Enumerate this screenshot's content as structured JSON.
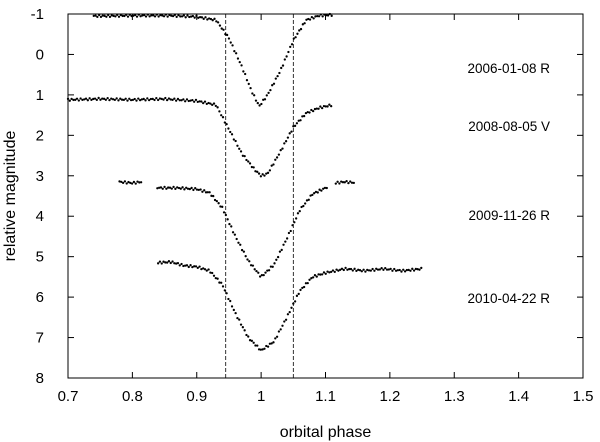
{
  "chart_data": {
    "type": "scatter",
    "xlabel": "orbital phase",
    "ylabel": "relative magnitude",
    "xlim": [
      0.7,
      1.5
    ],
    "ylim": [
      -1,
      8
    ],
    "y_inverted": true,
    "xticks": [
      "0.7",
      "0.8",
      "0.9",
      "1",
      "1.1",
      "1.2",
      "1.3",
      "1.4",
      "1.5"
    ],
    "yticks": [
      "-1",
      "0",
      "1",
      "2",
      "3",
      "4",
      "5",
      "6",
      "7",
      "8"
    ],
    "vlines": [
      0.945,
      1.05
    ],
    "vline_style": "dashed",
    "marker_color": "#000000",
    "series": [
      {
        "name": "2006-01-08  R",
        "baseline": -1.0,
        "points": [
          [
            0.74,
            -0.95
          ],
          [
            0.76,
            -0.95
          ],
          [
            0.79,
            -0.96
          ],
          [
            0.82,
            -0.96
          ],
          [
            0.86,
            -0.96
          ],
          [
            0.9,
            -0.93
          ],
          [
            0.93,
            -0.85
          ],
          [
            0.95,
            -0.4
          ],
          [
            0.97,
            0.3
          ],
          [
            0.985,
            0.9
          ],
          [
            0.997,
            1.28
          ],
          [
            1.01,
            1.0
          ],
          [
            1.03,
            0.4
          ],
          [
            1.05,
            -0.35
          ],
          [
            1.07,
            -0.85
          ],
          [
            1.09,
            -0.96
          ],
          [
            1.11,
            -0.98
          ]
        ]
      },
      {
        "name": "2008-08-05  V",
        "baseline": 1.1,
        "points": [
          [
            0.7,
            1.12
          ],
          [
            0.75,
            1.1
          ],
          [
            0.8,
            1.12
          ],
          [
            0.85,
            1.1
          ],
          [
            0.9,
            1.15
          ],
          [
            0.93,
            1.25
          ],
          [
            0.95,
            1.85
          ],
          [
            0.97,
            2.45
          ],
          [
            0.99,
            2.85
          ],
          [
            1.0,
            3.0
          ],
          [
            1.01,
            2.95
          ],
          [
            1.03,
            2.4
          ],
          [
            1.05,
            1.8
          ],
          [
            1.07,
            1.45
          ],
          [
            1.09,
            1.32
          ],
          [
            1.11,
            1.25
          ]
        ]
      },
      {
        "name": "2009-11-26  R",
        "baseline": 3.3,
        "points": [
          [
            0.78,
            3.15
          ],
          [
            0.8,
            3.18
          ],
          [
            0.815,
            3.15
          ],
          [
            0.84,
            3.3
          ],
          [
            0.87,
            3.3
          ],
          [
            0.9,
            3.33
          ],
          [
            0.92,
            3.42
          ],
          [
            0.94,
            3.8
          ],
          [
            0.96,
            4.5
          ],
          [
            0.98,
            5.1
          ],
          [
            1.0,
            5.5
          ],
          [
            1.02,
            5.2
          ],
          [
            1.04,
            4.55
          ],
          [
            1.06,
            3.85
          ],
          [
            1.08,
            3.45
          ],
          [
            1.1,
            3.3
          ],
          [
            1.115,
            3.18
          ],
          [
            1.13,
            3.15
          ],
          [
            1.145,
            3.17
          ]
        ]
      },
      {
        "name": "2010-04-22  R",
        "baseline": 5.3,
        "points": [
          [
            0.84,
            5.15
          ],
          [
            0.86,
            5.13
          ],
          [
            0.88,
            5.22
          ],
          [
            0.9,
            5.25
          ],
          [
            0.92,
            5.35
          ],
          [
            0.94,
            5.7
          ],
          [
            0.96,
            6.4
          ],
          [
            0.98,
            7.0
          ],
          [
            1.0,
            7.32
          ],
          [
            1.02,
            7.1
          ],
          [
            1.04,
            6.5
          ],
          [
            1.06,
            5.85
          ],
          [
            1.08,
            5.5
          ],
          [
            1.1,
            5.4
          ],
          [
            1.13,
            5.3
          ],
          [
            1.16,
            5.35
          ],
          [
            1.19,
            5.3
          ],
          [
            1.22,
            5.35
          ],
          [
            1.25,
            5.3
          ]
        ]
      }
    ]
  }
}
